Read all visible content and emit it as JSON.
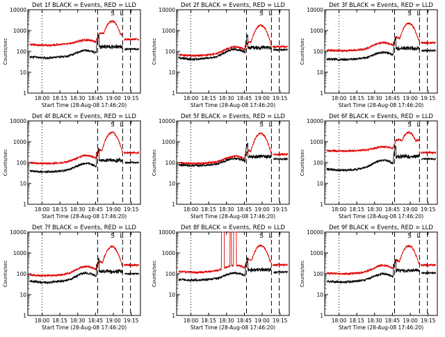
{
  "figure": {
    "xlabel": "Start Time (28-Aug-08 17:46:20)",
    "ylabel": "Counts/sec"
  },
  "chart_data": [
    {
      "type": "line",
      "title": "Det 1f BLACK = Events, RED = LLD",
      "x_ticks": [
        "18:00",
        "18:15",
        "18:30",
        "18:45",
        "19:00",
        "19:15"
      ],
      "y_ticks": [
        "1",
        "10",
        "100",
        "1000",
        "10000"
      ],
      "ylim": [
        1,
        10000
      ],
      "yscale": "log",
      "black_base": 55,
      "red_base": 220,
      "black_hump": 2.0,
      "red_hump": 1.6,
      "black_dip": 0.9,
      "red_dip": 0.9,
      "red_peak": 2800,
      "black_post": 130,
      "red_post": 380,
      "spikes": false,
      "markers": [
        "S",
        "L"
      ]
    },
    {
      "type": "line",
      "title": "Det 2f BLACK = Events, RED = LLD",
      "x_ticks": [
        "18:00",
        "18:15",
        "18:30",
        "18:45",
        "19:00",
        "19:15"
      ],
      "y_ticks": [
        "1",
        "10",
        "100",
        "1000",
        "10000"
      ],
      "ylim": [
        1,
        10000
      ],
      "yscale": "log",
      "black_base": 50,
      "red_base": 70,
      "black_hump": 2.6,
      "red_hump": 2.4,
      "black_dip": 0.85,
      "red_dip": 0.9,
      "red_peak": 1800,
      "black_post": 120,
      "red_post": 170,
      "spikes": false,
      "markers": [
        "S",
        "L"
      ]
    },
    {
      "type": "line",
      "title": "Det 3f BLACK = Events, RED = LLD",
      "x_ticks": [
        "18:00",
        "18:15",
        "18:30",
        "18:45",
        "19:00",
        "19:15"
      ],
      "y_ticks": [
        "1",
        "10",
        "100",
        "1000",
        "10000"
      ],
      "ylim": [
        1,
        10000
      ],
      "yscale": "log",
      "black_base": 45,
      "red_base": 120,
      "black_hump": 2.0,
      "red_hump": 2.2,
      "black_dip": 0.9,
      "red_dip": 0.9,
      "red_peak": 2200,
      "black_post": 110,
      "red_post": 260,
      "spikes": false,
      "markers": [
        "S",
        "L"
      ]
    },
    {
      "type": "line",
      "title": "Det 4f BLACK = Events, RED = LLD",
      "x_ticks": [
        "18:00",
        "18:15",
        "18:30",
        "18:45",
        "19:00",
        "19:15"
      ],
      "y_ticks": [
        "1",
        "10",
        "100",
        "1000",
        "10000"
      ],
      "ylim": [
        1,
        10000
      ],
      "yscale": "log",
      "black_base": 40,
      "red_base": 100,
      "black_hump": 2.3,
      "red_hump": 2.2,
      "black_dip": 0.9,
      "red_dip": 0.9,
      "red_peak": 2800,
      "black_post": 100,
      "red_post": 300,
      "spikes": false,
      "markers": [
        "S",
        "L"
      ]
    },
    {
      "type": "line",
      "title": "Det 5f BLACK = Events, RED = LLD",
      "x_ticks": [
        "18:00",
        "18:15",
        "18:30",
        "18:45",
        "19:00",
        "19:15"
      ],
      "y_ticks": [
        "1",
        "10",
        "100",
        "1000",
        "10000"
      ],
      "ylim": [
        1,
        10000
      ],
      "yscale": "log",
      "black_base": 80,
      "red_base": 100,
      "black_hump": 2.0,
      "red_hump": 2.0,
      "black_dip": 0.9,
      "red_dip": 0.9,
      "red_peak": 2500,
      "black_post": 150,
      "red_post": 250,
      "spikes": false,
      "markers": [
        "S",
        "L"
      ]
    },
    {
      "type": "line",
      "title": "Det 6f BLACK = Events, RED = LLD",
      "x_ticks": [
        "18:00",
        "18:15",
        "18:30",
        "18:45",
        "19:00",
        "19:15"
      ],
      "y_ticks": [
        "1",
        "10",
        "100",
        "1000",
        "10000"
      ],
      "ylim": [
        1,
        10000
      ],
      "yscale": "log",
      "black_base": 50,
      "red_base": 380,
      "black_hump": 2.6,
      "red_hump": 1.5,
      "black_dip": 0.85,
      "red_dip": 0.95,
      "red_peak": 2800,
      "black_post": 150,
      "red_post": 300,
      "spikes": false,
      "markers": [
        "S",
        "L"
      ]
    },
    {
      "type": "line",
      "title": "Det 7f BLACK = Events, RED = LLD",
      "x_ticks": [
        "18:00",
        "18:15",
        "18:30",
        "18:45",
        "19:00",
        "19:15"
      ],
      "y_ticks": [
        "1",
        "10",
        "100",
        "1000",
        "10000"
      ],
      "ylim": [
        1,
        10000
      ],
      "yscale": "log",
      "black_base": 45,
      "red_base": 90,
      "black_hump": 2.4,
      "red_hump": 2.5,
      "black_dip": 0.85,
      "red_dip": 0.9,
      "red_peak": 2000,
      "black_post": 100,
      "red_post": 260,
      "spikes": false,
      "markers": [
        "S",
        "L"
      ]
    },
    {
      "type": "line",
      "title": "Det 8f BLACK = Events, RED = LLD",
      "x_ticks": [
        "18:00",
        "18:15",
        "18:30",
        "18:45",
        "19:00",
        "19:15"
      ],
      "y_ticks": [
        "1",
        "10",
        "100",
        "1000",
        "10000"
      ],
      "ylim": [
        1,
        10000
      ],
      "yscale": "log",
      "black_base": 55,
      "red_base": 130,
      "black_hump": 2.0,
      "red_hump": 2.0,
      "black_dip": 0.9,
      "red_dip": 0.9,
      "red_peak": 2300,
      "black_post": 120,
      "red_post": 270,
      "spikes": true,
      "markers": [
        "S",
        "L"
      ]
    },
    {
      "type": "line",
      "title": "Det 9f BLACK = Events, RED = LLD",
      "x_ticks": [
        "18:00",
        "18:15",
        "18:30",
        "18:45",
        "19:00",
        "19:15"
      ],
      "y_ticks": [
        "1",
        "10",
        "100",
        "1000",
        "10000"
      ],
      "ylim": [
        1,
        10000
      ],
      "yscale": "log",
      "black_base": 45,
      "red_base": 110,
      "black_hump": 2.2,
      "red_hump": 2.3,
      "black_dip": 0.9,
      "red_dip": 0.9,
      "red_peak": 2200,
      "black_post": 110,
      "red_post": 260,
      "spikes": false,
      "markers": [
        "S",
        "L"
      ]
    }
  ]
}
